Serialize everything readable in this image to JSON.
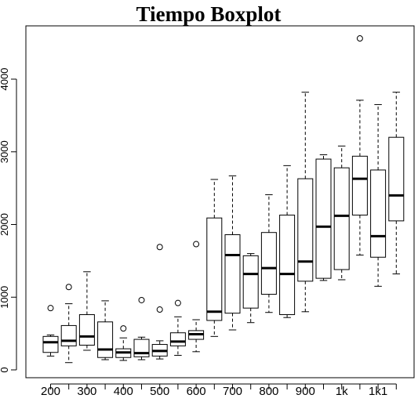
{
  "chart_data": {
    "type": "boxplot",
    "title": "Tiempo Boxplot",
    "xlabel": "",
    "ylabel": "",
    "ylim": [
      -20,
      4650
    ],
    "y_ticks": [
      0,
      1000,
      2000,
      3000,
      4000
    ],
    "x_tick_labels": [
      "200",
      "300",
      "400",
      "500",
      "600",
      "700",
      "800",
      "900",
      "1k",
      "1k1"
    ],
    "x_tick_positions": [
      1,
      3,
      5,
      7,
      9,
      11,
      13,
      15,
      17,
      19
    ],
    "boxes": [
      {
        "lo": 190,
        "q1": 240,
        "median": 380,
        "q3": 460,
        "hi": 480,
        "outliers": [
          850
        ]
      },
      {
        "lo": 100,
        "q1": 330,
        "median": 400,
        "q3": 610,
        "hi": 910,
        "outliers": [
          1140
        ]
      },
      {
        "lo": 270,
        "q1": 340,
        "median": 460,
        "q3": 760,
        "hi": 1350,
        "outliers": []
      },
      {
        "lo": 140,
        "q1": 170,
        "median": 280,
        "q3": 660,
        "hi": 950,
        "outliers": []
      },
      {
        "lo": 130,
        "q1": 170,
        "median": 240,
        "q3": 290,
        "hi": 440,
        "outliers": [
          570
        ]
      },
      {
        "lo": 140,
        "q1": 180,
        "median": 230,
        "q3": 420,
        "hi": 450,
        "outliers": [
          960
        ]
      },
      {
        "lo": 150,
        "q1": 190,
        "median": 260,
        "q3": 350,
        "hi": 400,
        "outliers": [
          830,
          1690
        ]
      },
      {
        "lo": 200,
        "q1": 330,
        "median": 390,
        "q3": 510,
        "hi": 730,
        "outliers": [
          920
        ]
      },
      {
        "lo": 250,
        "q1": 420,
        "median": 490,
        "q3": 540,
        "hi": 690,
        "outliers": [
          1730
        ]
      },
      {
        "lo": 460,
        "q1": 680,
        "median": 800,
        "q3": 2090,
        "hi": 2620,
        "outliers": []
      },
      {
        "lo": 550,
        "q1": 780,
        "median": 1580,
        "q3": 1860,
        "hi": 2670,
        "outliers": []
      },
      {
        "lo": 650,
        "q1": 850,
        "median": 1320,
        "q3": 1570,
        "hi": 1600,
        "outliers": []
      },
      {
        "lo": 790,
        "q1": 1040,
        "median": 1400,
        "q3": 1890,
        "hi": 2410,
        "outliers": []
      },
      {
        "lo": 720,
        "q1": 760,
        "median": 1320,
        "q3": 2130,
        "hi": 2810,
        "outliers": []
      },
      {
        "lo": 800,
        "q1": 1220,
        "median": 1490,
        "q3": 2630,
        "hi": 3820,
        "outliers": []
      },
      {
        "lo": 1230,
        "q1": 1260,
        "median": 1970,
        "q3": 2900,
        "hi": 2960,
        "outliers": []
      },
      {
        "lo": 1240,
        "q1": 1380,
        "median": 2120,
        "q3": 2780,
        "hi": 3080,
        "outliers": []
      },
      {
        "lo": 1580,
        "q1": 2130,
        "median": 2630,
        "q3": 2940,
        "hi": 3710,
        "outliers": [
          4560
        ]
      },
      {
        "lo": 1150,
        "q1": 1550,
        "median": 1840,
        "q3": 2750,
        "hi": 3650,
        "outliers": []
      },
      {
        "lo": 1320,
        "q1": 2050,
        "median": 2400,
        "q3": 3200,
        "hi": 3820,
        "outliers": []
      }
    ],
    "grid": false,
    "legend": "none"
  }
}
